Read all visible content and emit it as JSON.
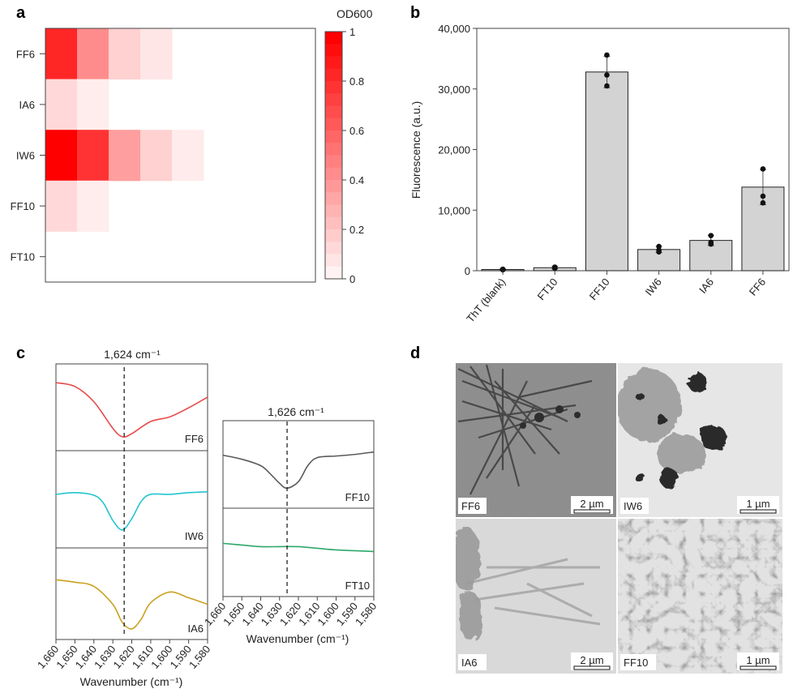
{
  "panels": {
    "a": "a",
    "b": "b",
    "c": "c",
    "d": "d"
  },
  "colors": {
    "heat_max": "#ff0000",
    "bar_fill": "#d3d3d3",
    "ff6": "#e84a4a",
    "iw6": "#22c5cf",
    "ia6": "#caa01f",
    "ff10": "#5a5a5a",
    "ft10": "#2ea86a"
  },
  "chart_data": [
    {
      "type": "heatmap",
      "colorbar_title": "OD600",
      "colorbar_ticks": [
        "1",
        "0.8",
        "0.6",
        "0.4",
        "0.2",
        "0"
      ],
      "colorbar_range": [
        0,
        1
      ],
      "rows": [
        "FF6",
        "IA6",
        "IW6",
        "FF10",
        "FT10"
      ],
      "values": [
        [
          0.85,
          0.45,
          0.18,
          0.1,
          0,
          0,
          0,
          0
        ],
        [
          0.15,
          0.07,
          0,
          0,
          0,
          0,
          0,
          0
        ],
        [
          1.0,
          0.8,
          0.38,
          0.18,
          0.08,
          0,
          0,
          0
        ],
        [
          0.15,
          0.07,
          0,
          0,
          0,
          0,
          0,
          0
        ],
        [
          0,
          0,
          0,
          0,
          0,
          0,
          0,
          0
        ]
      ]
    },
    {
      "type": "bar",
      "ylabel": "Fluorescence (a.u.)",
      "ylim": [
        0,
        40000
      ],
      "yticks": [
        "0",
        "10,000",
        "20,000",
        "30,000",
        "40,000"
      ],
      "ytick_values": [
        0,
        10000,
        20000,
        30000,
        40000
      ],
      "categories": [
        "ThT (blank)",
        "FT10",
        "FF10",
        "IW6",
        "IA6",
        "FF6"
      ],
      "values": [
        200,
        500,
        32800,
        3500,
        5000,
        13800
      ],
      "errors": [
        100,
        200,
        2600,
        500,
        850,
        2900
      ],
      "points": [
        [
          150,
          250,
          200
        ],
        [
          400,
          550,
          600
        ],
        [
          35600,
          32300,
          30500
        ],
        [
          4000,
          3400,
          3100
        ],
        [
          5800,
          4700,
          4400
        ],
        [
          16800,
          12300,
          11200
        ]
      ]
    },
    {
      "type": "line",
      "title": "1,624 cm⁻¹",
      "xlabel": "Wavenumber (cm⁻¹)",
      "xticks": [
        "1,660",
        "1,650",
        "1,640",
        "1,630",
        "1,620",
        "1,610",
        "1,600",
        "1,590",
        "1,580"
      ],
      "xlim": [
        1660,
        1580
      ],
      "marker": 1624,
      "series": [
        {
          "name": "FF6",
          "x": [
            1660,
            1650,
            1640,
            1630,
            1625,
            1620,
            1610,
            1600,
            1590,
            1580
          ],
          "y": [
            0.85,
            0.8,
            0.6,
            0.25,
            0.14,
            0.18,
            0.34,
            0.4,
            0.52,
            0.66
          ]
        },
        {
          "name": "IW6",
          "x": [
            1660,
            1650,
            1640,
            1635,
            1630,
            1625,
            1620,
            1615,
            1610,
            1600,
            1590,
            1580
          ],
          "y": [
            0.58,
            0.6,
            0.57,
            0.48,
            0.28,
            0.17,
            0.3,
            0.5,
            0.58,
            0.58,
            0.6,
            0.61
          ]
        },
        {
          "name": "IA6",
          "x": [
            1660,
            1650,
            1640,
            1630,
            1625,
            1620,
            1615,
            1610,
            1600,
            1590,
            1580
          ],
          "y": [
            0.7,
            0.67,
            0.62,
            0.4,
            0.18,
            0.1,
            0.22,
            0.42,
            0.55,
            0.48,
            0.4
          ]
        }
      ]
    },
    {
      "type": "line",
      "title": "1,626 cm⁻¹",
      "xlabel": "Wavenumber (cm⁻¹)",
      "xticks": [
        "1,660",
        "1,650",
        "1,640",
        "1,630",
        "1,620",
        "1,610",
        "1,600",
        "1,590",
        "1,580"
      ],
      "xlim": [
        1660,
        1580
      ],
      "marker": 1626,
      "series": [
        {
          "name": "FF10",
          "x": [
            1660,
            1650,
            1640,
            1635,
            1630,
            1626,
            1620,
            1615,
            1610,
            1600,
            1590,
            1580
          ],
          "y": [
            0.63,
            0.58,
            0.5,
            0.4,
            0.28,
            0.22,
            0.3,
            0.5,
            0.6,
            0.62,
            0.64,
            0.67
          ]
        },
        {
          "name": "FT10",
          "x": [
            1660,
            1650,
            1640,
            1630,
            1620,
            1610,
            1600,
            1590,
            1580
          ],
          "y": [
            0.62,
            0.6,
            0.58,
            0.58,
            0.58,
            0.56,
            0.54,
            0.53,
            0.52
          ]
        }
      ]
    }
  ],
  "micrographs": [
    {
      "label": "FF6",
      "scale": "2 µm"
    },
    {
      "label": "IW6",
      "scale": "1 µm"
    },
    {
      "label": "IA6",
      "scale": "2 µm"
    },
    {
      "label": "FF10",
      "scale": "1 µm"
    }
  ]
}
